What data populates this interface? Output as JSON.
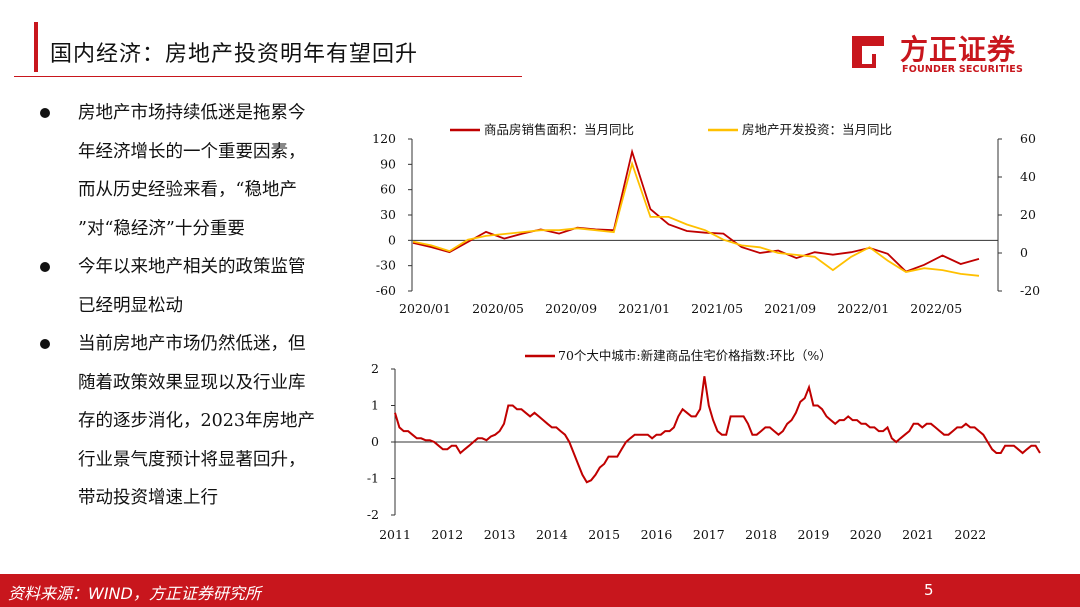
{
  "header": {
    "title": "国内经济：房地产投资明年有望回升"
  },
  "logo": {
    "name_cn": "方正证券",
    "name_en": "FOUNDER SECURITIES",
    "color": "#c8161d"
  },
  "bullets": [
    {
      "lines": [
        "房地产市场持续低迷是拖累今",
        "年经济增长的一个重要因素，",
        "而从历史经验来看，“稳地产",
        "”对“稳经济”十分重要"
      ]
    },
    {
      "lines": [
        "今年以来地产相关的政策监管",
        "已经明显松动"
      ]
    },
    {
      "lines": [
        "当前房地产市场仍然低迷，但",
        "随着政策效果显现以及行业库",
        "存的逐步消化，2023年房地产",
        "行业景气度预计将显著回升，",
        "带动投资增速上行"
      ]
    }
  ],
  "footer": {
    "source": "资料来源：WIND，方正证券研究所",
    "page": "5"
  },
  "colors": {
    "brand": "#c8161d",
    "series_red": "#c00000",
    "series_yellow": "#ffc000"
  },
  "chart_data": [
    {
      "type": "line",
      "x_ticks": [
        "2020/01",
        "2020/05",
        "2020/09",
        "2021/01",
        "2021/05",
        "2021/09",
        "2022/01",
        "2022/05"
      ],
      "ylim": [
        -60,
        120
      ],
      "yticks": [
        120,
        90,
        60,
        30,
        0,
        -30,
        -60
      ],
      "y2lim": [
        -20,
        60
      ],
      "y2ticks": [
        60,
        40,
        20,
        0,
        -20
      ],
      "grid": false,
      "legend": "top",
      "series": [
        {
          "name": "商品房销售面积：当月同比",
          "axis": "left",
          "color": "#c00000",
          "values": [
            -3,
            -8,
            -14,
            -2,
            10,
            2,
            8,
            13,
            8,
            15,
            13,
            12,
            105,
            37,
            19,
            11,
            9,
            8,
            -8,
            -15,
            -12,
            -21,
            -14,
            -17,
            -14,
            -9,
            -16,
            -37,
            -29,
            -18,
            -28,
            -22
          ]
        },
        {
          "name": "房地产开发投资：当月同比",
          "axis": "right",
          "color": "#ffc000",
          "values": [
            6,
            4,
            1,
            7,
            9,
            10,
            11,
            12,
            12,
            13,
            12,
            11,
            47,
            19,
            19,
            15,
            12,
            7,
            4,
            3,
            0,
            -1,
            -2,
            -9,
            -2,
            3,
            -4,
            -10,
            -8,
            -9,
            -11,
            -12
          ]
        }
      ]
    },
    {
      "type": "line",
      "x_ticks": [
        "2011",
        "2012",
        "2013",
        "2014",
        "2015",
        "2016",
        "2017",
        "2018",
        "2019",
        "2020",
        "2021",
        "2022"
      ],
      "ylim": [
        -2,
        2
      ],
      "yticks": [
        2,
        1,
        0,
        -1,
        -2
      ],
      "grid": false,
      "legend": "top",
      "series": [
        {
          "name": "70个大中城市:新建商品住宅价格指数:环比（%）",
          "color": "#c00000",
          "values": [
            0.8,
            0.4,
            0.3,
            0.3,
            0.2,
            0.1,
            0.1,
            0.05,
            0.05,
            0.0,
            -0.1,
            -0.2,
            -0.2,
            -0.1,
            -0.1,
            -0.3,
            -0.2,
            -0.1,
            0.0,
            0.1,
            0.1,
            0.05,
            0.15,
            0.2,
            0.3,
            0.5,
            1.0,
            1.0,
            0.9,
            0.9,
            0.8,
            0.7,
            0.8,
            0.7,
            0.6,
            0.5,
            0.4,
            0.4,
            0.3,
            0.2,
            0.0,
            -0.3,
            -0.6,
            -0.9,
            -1.1,
            -1.05,
            -0.9,
            -0.7,
            -0.6,
            -0.4,
            -0.4,
            -0.4,
            -0.2,
            0.0,
            0.1,
            0.2,
            0.2,
            0.2,
            0.2,
            0.1,
            0.2,
            0.2,
            0.3,
            0.3,
            0.4,
            0.7,
            0.9,
            0.8,
            0.7,
            0.7,
            0.9,
            1.8,
            1.0,
            0.6,
            0.3,
            0.2,
            0.2,
            0.7,
            0.7,
            0.7,
            0.7,
            0.5,
            0.2,
            0.2,
            0.3,
            0.4,
            0.4,
            0.3,
            0.2,
            0.3,
            0.5,
            0.6,
            0.8,
            1.1,
            1.2,
            1.5,
            1.0,
            1.0,
            0.9,
            0.7,
            0.6,
            0.5,
            0.6,
            0.6,
            0.7,
            0.6,
            0.6,
            0.5,
            0.5,
            0.4,
            0.4,
            0.3,
            0.3,
            0.4,
            0.1,
            0.0,
            0.1,
            0.2,
            0.3,
            0.5,
            0.5,
            0.4,
            0.5,
            0.5,
            0.4,
            0.3,
            0.2,
            0.2,
            0.3,
            0.4,
            0.4,
            0.5,
            0.4,
            0.4,
            0.3,
            0.2,
            0.0,
            -0.2,
            -0.3,
            -0.3,
            -0.1,
            -0.1,
            -0.1,
            -0.2,
            -0.3,
            -0.2,
            -0.1,
            -0.1,
            -0.3
          ]
        }
      ]
    }
  ]
}
